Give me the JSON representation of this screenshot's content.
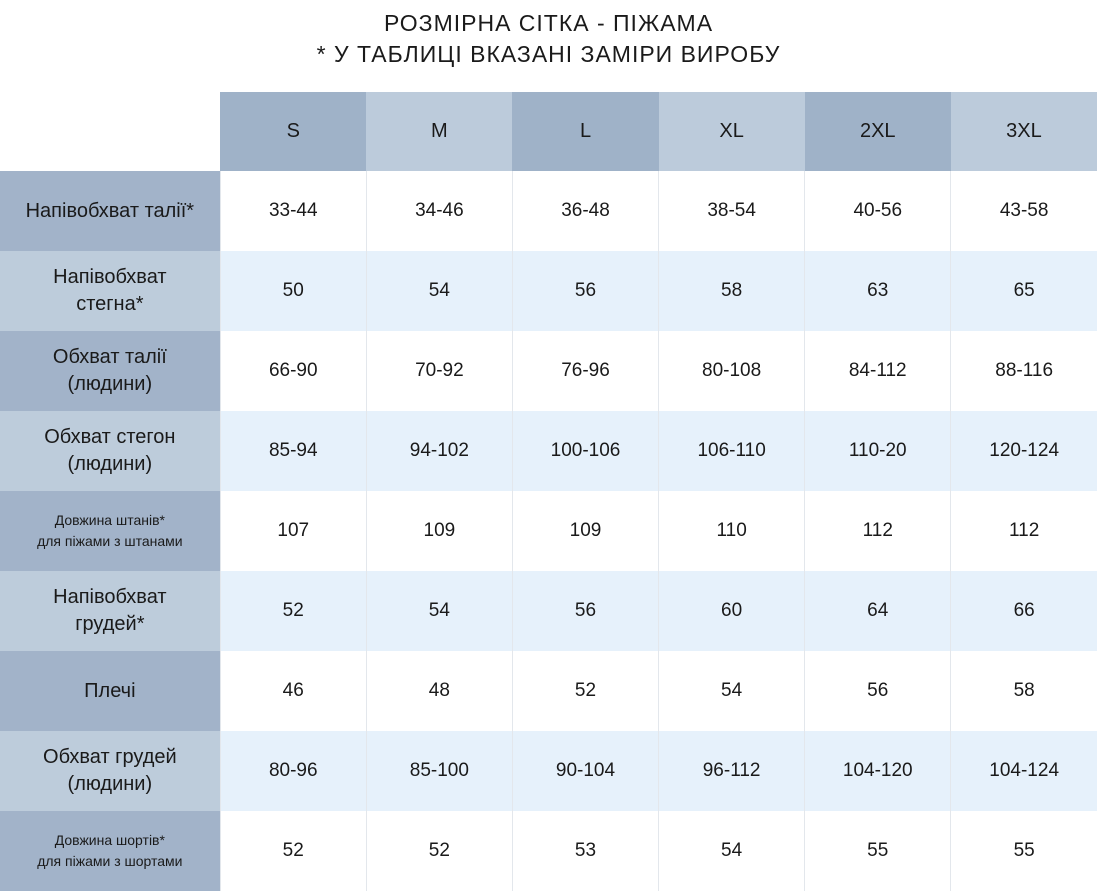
{
  "title": {
    "line1": "РОЗМІРНА СІТКА - ПІЖАМА",
    "line2": "* У ТАБЛИЦІ ВКАЗАНІ ЗАМІРИ ВИРОБУ"
  },
  "sizes": [
    "S",
    "M",
    "L",
    "XL",
    "2XL",
    "3XL"
  ],
  "rows": [
    {
      "label": [
        "Напівобхват талії*"
      ],
      "values": [
        "33-44",
        "34-46",
        "36-48",
        "38-54",
        "40-56",
        "43-58"
      ]
    },
    {
      "label": [
        "Напівобхват",
        "стегна*"
      ],
      "values": [
        "50",
        "54",
        "56",
        "58",
        "63",
        "65"
      ]
    },
    {
      "label": [
        "Обхват талії",
        "(людини)"
      ],
      "values": [
        "66-90",
        "70-92",
        "76-96",
        "80-108",
        "84-112",
        "88-116"
      ]
    },
    {
      "label": [
        "Обхват стегон",
        "(людини)"
      ],
      "values": [
        "85-94",
        "94-102",
        "100-106",
        "106-110",
        "110-20",
        "120-124"
      ]
    },
    {
      "label": [
        "Довжина штанів*",
        "для піжами з штанами"
      ],
      "values": [
        "107",
        "109",
        "109",
        "110",
        "112",
        "112"
      ]
    },
    {
      "label": [
        "Напівобхват",
        "грудей*"
      ],
      "values": [
        "52",
        "54",
        "56",
        "60",
        "64",
        "66"
      ]
    },
    {
      "label": [
        "Плечі"
      ],
      "values": [
        "46",
        "48",
        "52",
        "54",
        "56",
        "58"
      ]
    },
    {
      "label": [
        "Обхват грудей",
        "(людини)"
      ],
      "values": [
        "80-96",
        "85-100",
        "90-104",
        "96-112",
        "104-120",
        "104-124"
      ]
    },
    {
      "label": [
        "Довжина шортів*",
        "для піжами з шортами"
      ],
      "values": [
        "52",
        "52",
        "53",
        "54",
        "55",
        "55"
      ]
    }
  ],
  "colors": {
    "header_dark": "#9fb2c8",
    "header_light": "#bccbdb",
    "label_dark": "#a2b3c9",
    "label_light": "#bdccdb",
    "stripe": "#e6f1fb"
  }
}
